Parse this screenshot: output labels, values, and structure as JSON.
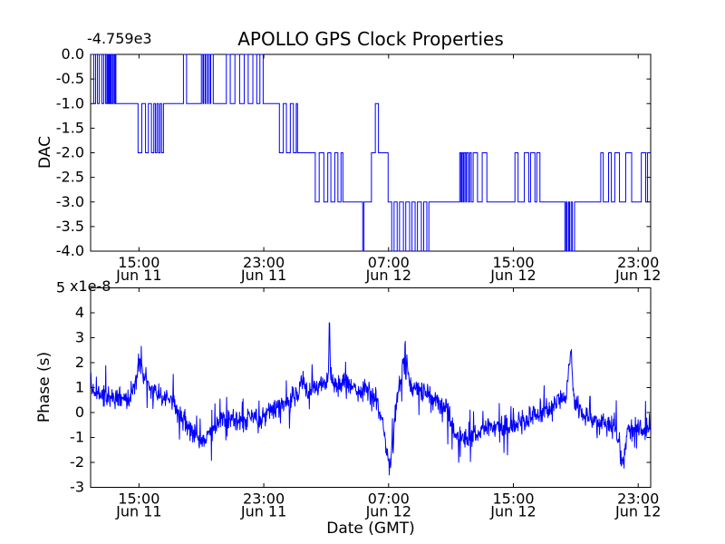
{
  "figure": {
    "title": "APOLLO GPS Clock Properties",
    "background": "#ffffff",
    "axis_color": "#000000",
    "line_color": "#0000ff"
  },
  "x_axis": {
    "label": "Date (GMT)",
    "unit": "hours since Jun 11 00:00",
    "xlim": [
      11.9,
      47.8
    ],
    "ticks": [
      {
        "hour": 15,
        "time": "15:00",
        "date": "Jun 11"
      },
      {
        "hour": 23,
        "time": "23:00",
        "date": "Jun 11"
      },
      {
        "hour": 31,
        "time": "07:00",
        "date": "Jun 12"
      },
      {
        "hour": 39,
        "time": "15:00",
        "date": "Jun 12"
      },
      {
        "hour": 47,
        "time": "23:00",
        "date": "Jun 12"
      }
    ]
  },
  "chart_data": [
    {
      "type": "line",
      "style": "step",
      "position": "top",
      "title": "APOLLO GPS Clock Properties",
      "ylabel": "DAC",
      "y_offset_label": "-4.759e3",
      "ylim": [
        -4.0,
        0.0
      ],
      "yticks": [
        0.0,
        -0.5,
        -1.0,
        -1.5,
        -2.0,
        -2.5,
        -3.0,
        -3.5,
        -4.0
      ],
      "ytick_labels": [
        "0.0",
        "-0.5",
        "-1.0",
        "-1.5",
        "-2.0",
        "-2.5",
        "-3.0",
        "-3.5",
        "-4.0"
      ],
      "steps": [
        [
          11.92,
          0
        ],
        [
          12.1,
          -1
        ],
        [
          12.22,
          0
        ],
        [
          12.34,
          -1
        ],
        [
          12.46,
          0
        ],
        [
          12.62,
          -1
        ],
        [
          12.74,
          0
        ],
        [
          12.86,
          -1
        ],
        [
          12.94,
          0
        ],
        [
          13.0,
          -1
        ],
        [
          13.06,
          0
        ],
        [
          13.12,
          -1
        ],
        [
          13.18,
          0
        ],
        [
          13.24,
          -1
        ],
        [
          13.32,
          0
        ],
        [
          13.4,
          -1
        ],
        [
          13.46,
          0
        ],
        [
          13.52,
          -1
        ],
        [
          14.94,
          -2
        ],
        [
          15.18,
          -1
        ],
        [
          15.42,
          -2
        ],
        [
          15.6,
          -1
        ],
        [
          15.8,
          -2
        ],
        [
          15.95,
          -1
        ],
        [
          16.05,
          -2
        ],
        [
          16.15,
          -1
        ],
        [
          16.25,
          -2
        ],
        [
          16.35,
          -1
        ],
        [
          16.45,
          -2
        ],
        [
          16.57,
          -1
        ],
        [
          17.85,
          0
        ],
        [
          18.05,
          -1
        ],
        [
          19.0,
          0
        ],
        [
          19.1,
          -1
        ],
        [
          19.14,
          0
        ],
        [
          19.24,
          -1
        ],
        [
          19.28,
          0
        ],
        [
          19.4,
          -1
        ],
        [
          19.44,
          0
        ],
        [
          19.56,
          -1
        ],
        [
          19.6,
          0
        ],
        [
          19.76,
          -1
        ],
        [
          20.6,
          0
        ],
        [
          20.85,
          -1
        ],
        [
          21.15,
          0
        ],
        [
          21.45,
          -1
        ],
        [
          21.75,
          0
        ],
        [
          22.0,
          -1
        ],
        [
          22.3,
          0
        ],
        [
          22.55,
          -1
        ],
        [
          22.75,
          0
        ],
        [
          22.96,
          -1
        ],
        [
          24.0,
          -2
        ],
        [
          24.25,
          -1
        ],
        [
          24.45,
          -2
        ],
        [
          24.7,
          -1
        ],
        [
          24.9,
          -2
        ],
        [
          25.08,
          -1
        ],
        [
          25.16,
          -2
        ],
        [
          26.3,
          -3
        ],
        [
          26.55,
          -2
        ],
        [
          26.85,
          -3
        ],
        [
          27.1,
          -2
        ],
        [
          27.3,
          -3
        ],
        [
          27.55,
          -2
        ],
        [
          27.75,
          -3
        ],
        [
          27.95,
          -2
        ],
        [
          28.07,
          -3
        ],
        [
          29.34,
          -4
        ],
        [
          29.42,
          -3
        ],
        [
          29.9,
          -2
        ],
        [
          30.15,
          -1
        ],
        [
          30.35,
          -2
        ],
        [
          30.97,
          -3
        ],
        [
          31.2,
          -4
        ],
        [
          31.35,
          -3
        ],
        [
          31.55,
          -4
        ],
        [
          31.7,
          -3
        ],
        [
          31.95,
          -4
        ],
        [
          32.1,
          -3
        ],
        [
          32.35,
          -4
        ],
        [
          32.5,
          -3
        ],
        [
          32.7,
          -4
        ],
        [
          32.85,
          -3
        ],
        [
          33.1,
          -4
        ],
        [
          33.25,
          -3
        ],
        [
          33.45,
          -4
        ],
        [
          33.58,
          -3
        ],
        [
          35.56,
          -2
        ],
        [
          35.64,
          -3
        ],
        [
          35.7,
          -2
        ],
        [
          35.78,
          -3
        ],
        [
          35.84,
          -2
        ],
        [
          35.94,
          -3
        ],
        [
          36.0,
          -2
        ],
        [
          36.12,
          -3
        ],
        [
          36.2,
          -2
        ],
        [
          36.3,
          -3
        ],
        [
          36.42,
          -2
        ],
        [
          36.7,
          -3
        ],
        [
          37.0,
          -2
        ],
        [
          37.3,
          -3
        ],
        [
          39.1,
          -2
        ],
        [
          39.3,
          -3
        ],
        [
          39.7,
          -2
        ],
        [
          39.98,
          -3
        ],
        [
          40.1,
          -2
        ],
        [
          40.38,
          -3
        ],
        [
          40.5,
          -2
        ],
        [
          40.7,
          -3
        ],
        [
          42.3,
          -4
        ],
        [
          42.38,
          -3
        ],
        [
          42.44,
          -4
        ],
        [
          42.54,
          -3
        ],
        [
          42.6,
          -4
        ],
        [
          42.7,
          -3
        ],
        [
          42.78,
          -4
        ],
        [
          42.92,
          -3
        ],
        [
          44.6,
          -2
        ],
        [
          44.76,
          -3
        ],
        [
          45.1,
          -2
        ],
        [
          45.28,
          -3
        ],
        [
          45.5,
          -2
        ],
        [
          45.8,
          -3
        ],
        [
          46.2,
          -2
        ],
        [
          46.58,
          -3
        ],
        [
          47.2,
          -2
        ],
        [
          47.48,
          -3
        ],
        [
          47.6,
          -2
        ]
      ]
    },
    {
      "type": "line",
      "style": "noisy",
      "position": "bottom",
      "ylabel": "Phase (s)",
      "y_offset_label": "x1e-8",
      "xlabel": "Date (GMT)",
      "ylim": [
        -3,
        5
      ],
      "yticks": [
        5,
        4,
        3,
        2,
        1,
        0,
        -1,
        -2,
        -3
      ],
      "ytick_labels": [
        "5",
        "4",
        "3",
        "2",
        "1",
        "0",
        "-1",
        "-2",
        "-3"
      ],
      "trend": [
        [
          11.92,
          0.9
        ],
        [
          12.5,
          0.7
        ],
        [
          13.1,
          0.5
        ],
        [
          13.7,
          0.6
        ],
        [
          14.3,
          0.6
        ],
        [
          14.8,
          1.2
        ],
        [
          15.05,
          2.1
        ],
        [
          15.3,
          1.6
        ],
        [
          15.8,
          0.9
        ],
        [
          16.4,
          0.7
        ],
        [
          17.0,
          0.5
        ],
        [
          17.6,
          -0.1
        ],
        [
          18.2,
          -0.7
        ],
        [
          18.9,
          -1.1
        ],
        [
          19.4,
          -0.9
        ],
        [
          19.9,
          -0.5
        ],
        [
          20.5,
          -0.3
        ],
        [
          21.0,
          -0.2
        ],
        [
          21.6,
          -0.4
        ],
        [
          22.2,
          -0.1
        ],
        [
          22.8,
          -0.3
        ],
        [
          23.4,
          0.1
        ],
        [
          24.0,
          0.3
        ],
        [
          24.6,
          0.4
        ],
        [
          25.1,
          0.7
        ],
        [
          25.45,
          1.3
        ],
        [
          25.8,
          0.8
        ],
        [
          26.3,
          1.0
        ],
        [
          26.9,
          1.2
        ],
        [
          27.15,
          1.4
        ],
        [
          27.2,
          4.2
        ],
        [
          27.28,
          1.4
        ],
        [
          27.7,
          1.0
        ],
        [
          28.2,
          1.3
        ],
        [
          28.7,
          0.9
        ],
        [
          29.2,
          0.8
        ],
        [
          29.7,
          0.9
        ],
        [
          30.2,
          0.4
        ],
        [
          30.6,
          -0.3
        ],
        [
          31.0,
          -2.2
        ],
        [
          31.15,
          -1.7
        ],
        [
          31.5,
          0.3
        ],
        [
          32.05,
          2.6
        ],
        [
          32.35,
          1.0
        ],
        [
          32.9,
          0.9
        ],
        [
          33.5,
          0.7
        ],
        [
          34.1,
          0.4
        ],
        [
          34.7,
          0.2
        ],
        [
          35.3,
          -0.9
        ],
        [
          35.9,
          -1.1
        ],
        [
          36.5,
          -0.9
        ],
        [
          37.1,
          -0.7
        ],
        [
          37.7,
          -0.6
        ],
        [
          38.3,
          -0.5
        ],
        [
          38.9,
          -0.5
        ],
        [
          39.5,
          -0.4
        ],
        [
          40.1,
          -0.2
        ],
        [
          40.7,
          0.0
        ],
        [
          41.3,
          0.2
        ],
        [
          41.9,
          0.5
        ],
        [
          42.4,
          0.6
        ],
        [
          42.68,
          2.7
        ],
        [
          42.9,
          0.4
        ],
        [
          43.4,
          0.0
        ],
        [
          43.9,
          -0.3
        ],
        [
          44.4,
          -0.4
        ],
        [
          44.9,
          -0.5
        ],
        [
          45.5,
          -0.4
        ],
        [
          46.05,
          -2.2
        ],
        [
          46.3,
          -0.7
        ],
        [
          46.8,
          -0.5
        ],
        [
          47.3,
          -0.8
        ],
        [
          47.78,
          -0.5
        ]
      ],
      "noise": {
        "amplitude": 0.5,
        "spike_probability": 0.1,
        "spike_amplitude": 1.1,
        "points_per_hour": 40,
        "seed": 1234567
      }
    }
  ]
}
